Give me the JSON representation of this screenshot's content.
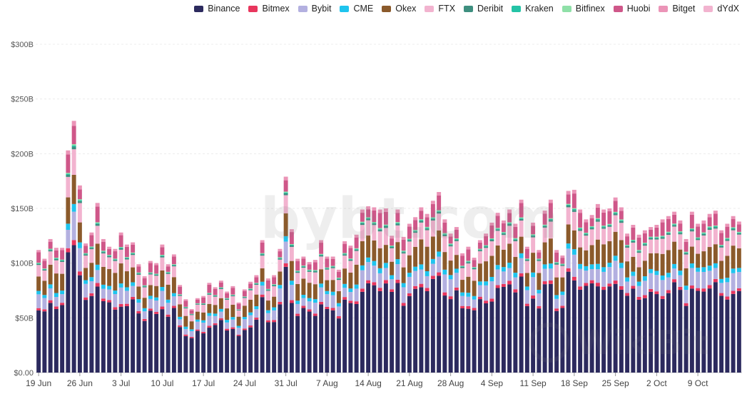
{
  "legend": [
    {
      "name": "Binance",
      "color": "#2c2a5e"
    },
    {
      "name": "Bitmex",
      "color": "#e8365d"
    },
    {
      "name": "Bybit",
      "color": "#b3b0e0"
    },
    {
      "name": "CME",
      "color": "#1fc4ee"
    },
    {
      "name": "Okex",
      "color": "#8b5a2b"
    },
    {
      "name": "FTX",
      "color": "#f2b3cf"
    },
    {
      "name": "Deribit",
      "color": "#3e8f7f"
    },
    {
      "name": "Kraken",
      "color": "#24c3a6"
    },
    {
      "name": "Bitfinex",
      "color": "#8fe0a8"
    },
    {
      "name": "Huobi",
      "color": "#cf5789"
    },
    {
      "name": "Bitget",
      "color": "#eb94b7"
    },
    {
      "name": "dYdX",
      "color": "#f2b3cf"
    }
  ],
  "watermark": "bybt.com",
  "watermark2": "WikiBit",
  "chart_data": {
    "type": "bar",
    "stacked": true,
    "ylim": [
      0,
      300
    ],
    "yunit": "B",
    "yticks": [
      "$0.00",
      "$50B",
      "$100B",
      "$150B",
      "$200B",
      "$250B",
      "$300B"
    ],
    "xticks": [
      {
        "label": "19 Jun",
        "index": 0
      },
      {
        "label": "26 Jun",
        "index": 7
      },
      {
        "label": "3 Jul",
        "index": 14
      },
      {
        "label": "10 Jul",
        "index": 21
      },
      {
        "label": "17 Jul",
        "index": 28
      },
      {
        "label": "24 Jul",
        "index": 35
      },
      {
        "label": "31 Jul",
        "index": 42
      },
      {
        "label": "7 Aug",
        "index": 49
      },
      {
        "label": "14 Aug",
        "index": 56
      },
      {
        "label": "21 Aug",
        "index": 63
      },
      {
        "label": "28 Aug",
        "index": 70
      },
      {
        "label": "4 Sep",
        "index": 77
      },
      {
        "label": "11 Sep",
        "index": 84
      },
      {
        "label": "18 Sep",
        "index": 91
      },
      {
        "label": "25 Sep",
        "index": 98
      },
      {
        "label": "2 Oct",
        "index": 105
      },
      {
        "label": "9 Oct",
        "index": 112
      }
    ],
    "series_names": [
      "Binance",
      "Bitmex",
      "Bybit",
      "CME",
      "Okex",
      "FTX",
      "Deribit",
      "Kraken",
      "Bitfinex",
      "Huobi",
      "Bitget",
      "dYdX"
    ],
    "totals": [
      112,
      104,
      122,
      114,
      114,
      203,
      230,
      171,
      118,
      128,
      155,
      122,
      115,
      113,
      128,
      117,
      119,
      99,
      88,
      102,
      100,
      117,
      99,
      108,
      80,
      67,
      58,
      68,
      70,
      82,
      78,
      84,
      74,
      79,
      64,
      76,
      83,
      89,
      121,
      86,
      89,
      113,
      179,
      131,
      104,
      106,
      101,
      103,
      121,
      106,
      106,
      94,
      120,
      116,
      126,
      149,
      152,
      151,
      149,
      150,
      125,
      149,
      124,
      136,
      142,
      151,
      145,
      157,
      165,
      140,
      127,
      133,
      109,
      115,
      105,
      121,
      127,
      137,
      146,
      139,
      149,
      136,
      158,
      115,
      137,
      112,
      148,
      158,
      112,
      107,
      166,
      167,
      149,
      140,
      144,
      154,
      149,
      150,
      160,
      151,
      127,
      135,
      126,
      130,
      133,
      135,
      140,
      143,
      147,
      139,
      122,
      147,
      136,
      139,
      145,
      148,
      130,
      136,
      143,
      138
    ],
    "comment_series_breakdown": "each bar stacked as fractions of total: Binance, Bitmex, Bybit, CME, Okex, FTX, Deribit, Kraken, Bitfinex, Huobi, Bitget, dYdX",
    "fractions": [
      0.52,
      0.02,
      0.1,
      0.03,
      0.12,
      0.1,
      0.01,
      0.005,
      0.005,
      0.06,
      0.02,
      0.0
    ]
  }
}
